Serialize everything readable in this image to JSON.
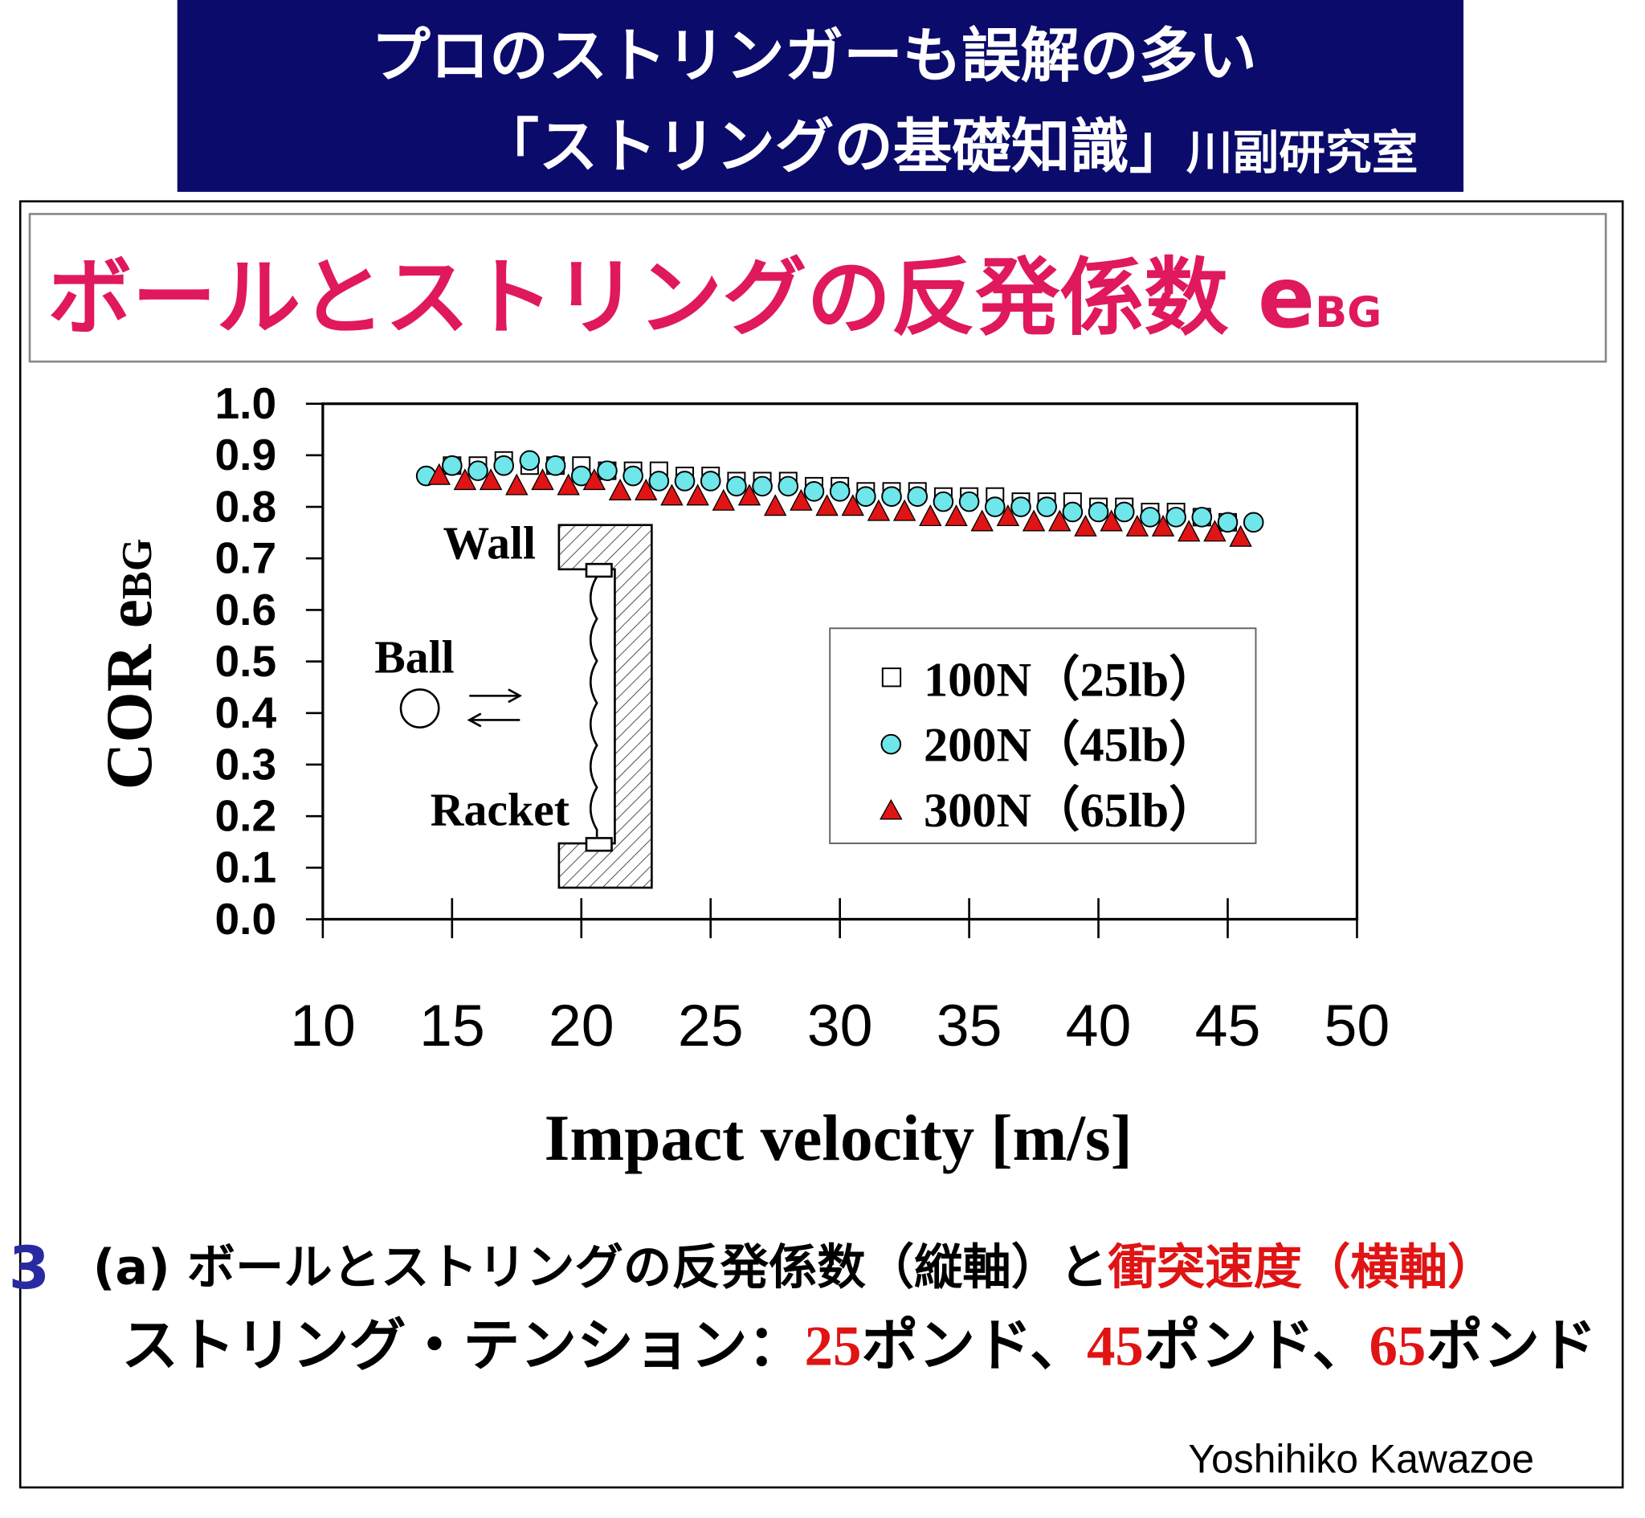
{
  "header": {
    "line1": "プロのストリンガーも誤解の多い",
    "line2": "「ストリングの基礎知識」",
    "lab": "川副研究室",
    "bg_color": "#0b0b6b"
  },
  "slide_title": {
    "main": "ボールとストリングの反発係数 e",
    "sub": "BG",
    "color": "#e0185e"
  },
  "chart_data": {
    "type": "scatter",
    "title": "ボールとストリングの反発係数 eBG",
    "xlabel": "Impact velocity [m/s]",
    "ylabel_main": "COR e",
    "ylabel_sub": "BG",
    "xlim": [
      10,
      50
    ],
    "ylim": [
      0.0,
      1.0
    ],
    "x_ticks": [
      "10",
      "15",
      "20",
      "25",
      "30",
      "35",
      "40",
      "45",
      "50"
    ],
    "y_ticks": [
      "0.0",
      "0.1",
      "0.2",
      "0.3",
      "0.4",
      "0.5",
      "0.6",
      "0.7",
      "0.8",
      "0.9",
      "1.0"
    ],
    "grid": false,
    "legend_position": "center-right",
    "series": [
      {
        "name": "100N（25lb）",
        "marker": "square",
        "color": "#ffffff",
        "x": [
          15,
          16,
          17,
          18,
          19,
          20,
          21,
          22,
          23,
          24,
          25,
          26,
          27,
          28,
          29,
          30,
          31,
          32,
          33,
          34,
          35,
          36,
          37,
          38,
          39,
          40,
          41,
          42,
          43,
          44,
          45
        ],
        "y": [
          0.88,
          0.88,
          0.89,
          0.88,
          0.88,
          0.88,
          0.87,
          0.87,
          0.87,
          0.86,
          0.86,
          0.85,
          0.85,
          0.85,
          0.84,
          0.84,
          0.83,
          0.83,
          0.83,
          0.82,
          0.82,
          0.82,
          0.81,
          0.81,
          0.81,
          0.8,
          0.8,
          0.79,
          0.79,
          0.78,
          0.77
        ]
      },
      {
        "name": "200N（45lb）",
        "marker": "circle",
        "color": "#6ee6ea",
        "x": [
          14,
          15,
          16,
          17,
          18,
          19,
          20,
          21,
          22,
          23,
          24,
          25,
          26,
          27,
          28,
          29,
          30,
          31,
          32,
          33,
          34,
          35,
          36,
          37,
          38,
          39,
          40,
          41,
          42,
          43,
          44,
          45,
          46
        ],
        "y": [
          0.86,
          0.88,
          0.87,
          0.88,
          0.89,
          0.88,
          0.86,
          0.87,
          0.86,
          0.85,
          0.85,
          0.85,
          0.84,
          0.84,
          0.84,
          0.83,
          0.83,
          0.82,
          0.82,
          0.82,
          0.81,
          0.81,
          0.8,
          0.8,
          0.8,
          0.79,
          0.79,
          0.79,
          0.78,
          0.78,
          0.78,
          0.77,
          0.77
        ]
      },
      {
        "name": "300N（65lb）",
        "marker": "triangle",
        "color": "#e01414",
        "x": [
          14.5,
          15.5,
          16.5,
          17.5,
          18.5,
          19.5,
          20.5,
          21.5,
          22.5,
          23.5,
          24.5,
          25.5,
          26.5,
          27.5,
          28.5,
          29.5,
          30.5,
          31.5,
          32.5,
          33.5,
          34.5,
          35.5,
          36.5,
          37.5,
          38.5,
          39.5,
          40.5,
          41.5,
          42.5,
          43.5,
          44.5,
          45.5
        ],
        "y": [
          0.86,
          0.85,
          0.85,
          0.84,
          0.85,
          0.84,
          0.85,
          0.83,
          0.83,
          0.82,
          0.82,
          0.81,
          0.82,
          0.8,
          0.81,
          0.8,
          0.8,
          0.79,
          0.79,
          0.78,
          0.78,
          0.77,
          0.78,
          0.77,
          0.77,
          0.76,
          0.77,
          0.76,
          0.76,
          0.75,
          0.75,
          0.74
        ]
      }
    ],
    "inset_labels": {
      "wall": "Wall",
      "ball": "Ball",
      "racket": "Racket"
    }
  },
  "caption": {
    "figure_number": "3",
    "line1_black": "(a)  ボールとストリングの反発係数（縦軸）と",
    "line1_red": "衝突速度（横軸）",
    "line2_prefix": "ストリング・テンション：",
    "t1": "25",
    "u1": "ポンド、",
    "t2": "45",
    "u2": "ポンド、",
    "t3": "65",
    "u3": "ポンド",
    "red_color": "#e01414"
  },
  "author": "Yoshihiko Kawazoe"
}
